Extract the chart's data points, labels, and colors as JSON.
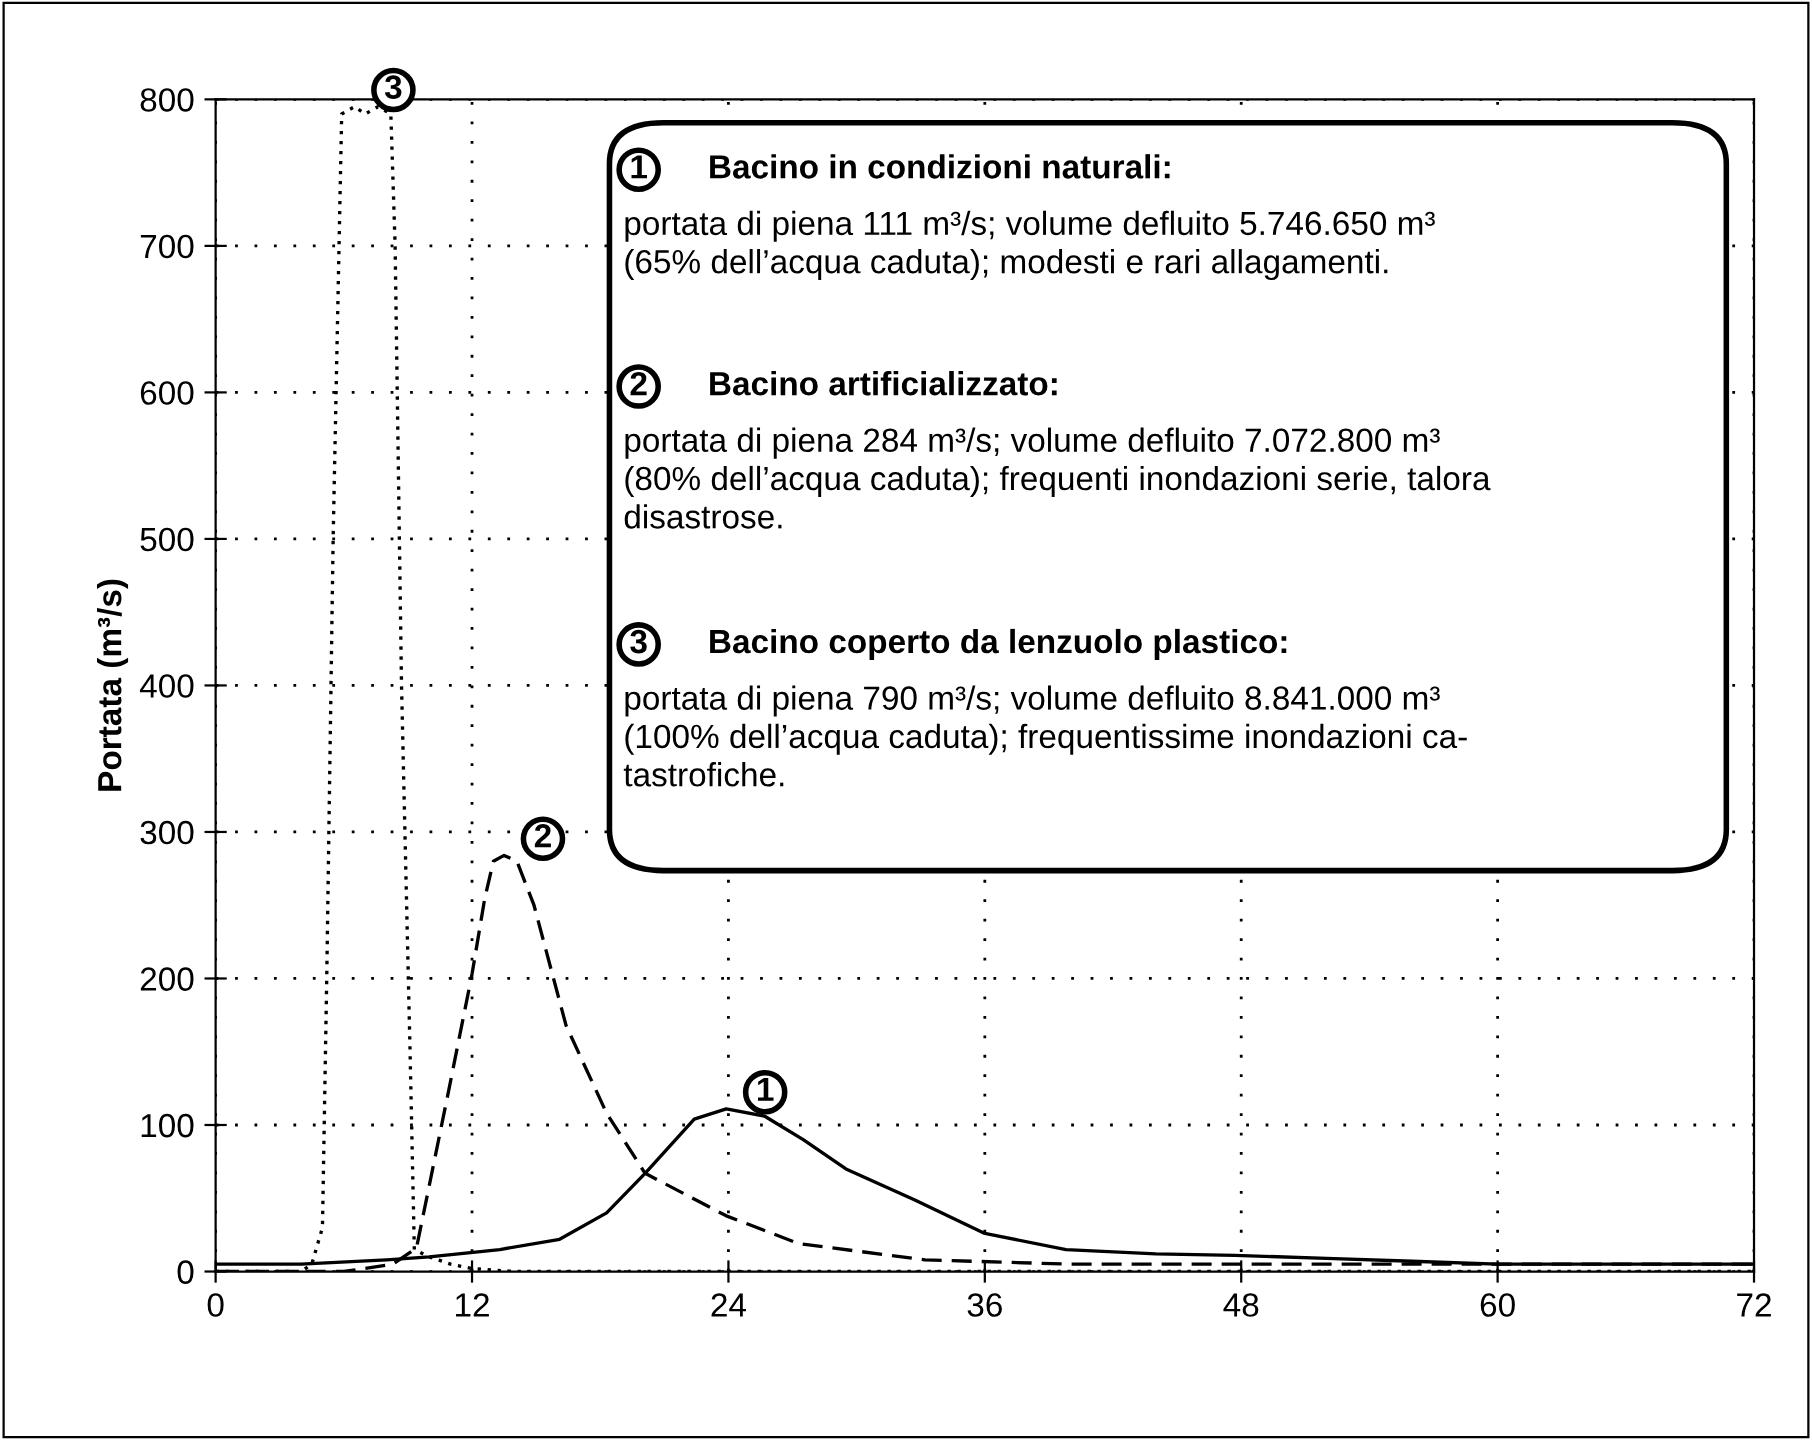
{
  "chart_data": {
    "type": "line",
    "ylabel": "Portata (m³/s)",
    "xlim": [
      0,
      72
    ],
    "xticks": [
      0,
      12,
      24,
      36,
      48,
      60,
      72
    ],
    "ylim": [
      0,
      800
    ],
    "yticks": [
      0,
      100,
      200,
      300,
      400,
      500,
      600,
      700,
      800
    ],
    "grid": true,
    "marker": "none",
    "series": [
      {
        "name": "1",
        "color": "#000000",
        "line_style": "solid",
        "x": [
          0,
          4,
          8,
          10,
          13.3,
          16.1,
          18.3,
          20.1,
          22.4,
          23.9,
          25.7,
          27.5,
          29.5,
          32.7,
          36,
          39.8,
          44,
          47.7,
          52,
          56,
          60,
          66,
          72
        ],
        "values": [
          5,
          5,
          8,
          10,
          15,
          22,
          40,
          67,
          104,
          111,
          106,
          90,
          70,
          49,
          26,
          15,
          12,
          11,
          9,
          7,
          5,
          5,
          5
        ]
      },
      {
        "name": "2",
        "color": "#000000",
        "line_style": "dashed",
        "x": [
          0,
          6,
          8.3,
          9.4,
          10.9,
          12,
          12.6,
          13,
          13.5,
          14.1,
          14.9,
          16.4,
          18.3,
          20.1,
          23.9,
          27.3,
          33.2,
          40,
          72
        ],
        "values": [
          0,
          0,
          5,
          16,
          123,
          203,
          255,
          280,
          284,
          280,
          250,
          168,
          108,
          67,
          38,
          19,
          8,
          5,
          5
        ]
      },
      {
        "name": "3",
        "color": "#000000",
        "line_style": "dotted",
        "x": [
          0,
          4,
          4.5,
          5,
          5.2,
          5.5,
          5.9,
          6.5,
          7,
          7.6,
          8.2,
          8.4,
          8.7,
          9.1,
          9.3,
          10,
          11,
          12,
          14,
          72
        ],
        "values": [
          0,
          0,
          5,
          30,
          200,
          500,
          790,
          795,
          790,
          795,
          790,
          700,
          400,
          150,
          15,
          10,
          5,
          2,
          0,
          0
        ]
      }
    ],
    "annotations": [
      "1",
      "Bacino in condizioni naturali:",
      "portata di piena 111 m³/s; volume defluito 5.746.650 m³\n(65% dell’acqua caduta); modesti e rari allagamenti.",
      "2",
      "Bacino artificializzato:",
      "portata di piena 284 m³/s; volume defluito 7.072.800 m³\n(80% dell’acqua caduta); frequenti inondazioni serie, talora\ndisastrose.",
      "3",
      "Bacino coperto da lenzuolo plastico:",
      "portata di piena 790 m³/s; volume defluito 8.841.000 m³\n(100% dell’acqua caduta); frequentissime inondazioni ca-\ntastrofiche."
    ]
  }
}
